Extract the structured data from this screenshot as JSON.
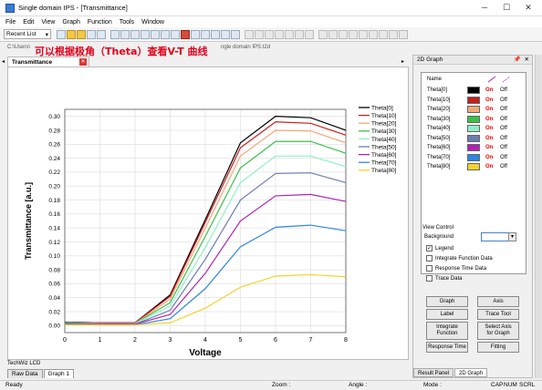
{
  "window": {
    "title": "Single domain IPS - [Transmittance]"
  },
  "menu": [
    "File",
    "Edit",
    "View",
    "Graph",
    "Function",
    "Tools",
    "Window"
  ],
  "toolbar": {
    "recent_list_label": "Recent List"
  },
  "path": {
    "left": "C:\\Users\\",
    "right": "ngle domain IPS.t2d"
  },
  "annotation": "可以根据极角（Theta）查看V-T 曲线",
  "doc_tab": "Transmittance",
  "chart_data": {
    "type": "line",
    "xlabel": "Voltage",
    "ylabel": "Transmittance [a.u.]",
    "xlim": [
      0,
      8
    ],
    "ylim": [
      -0.01,
      0.31
    ],
    "x_ticks": [
      "0",
      "1",
      "2",
      "3",
      "4",
      "5",
      "6",
      "7",
      "8"
    ],
    "y_ticks": [
      "0.00",
      "0.02",
      "0.04",
      "0.06",
      "0.08",
      "0.10",
      "0.12",
      "0.14",
      "0.16",
      "0.18",
      "0.20",
      "0.22",
      "0.24",
      "0.26",
      "0.28",
      "0.30"
    ],
    "grid": true,
    "legend_position": "top-right",
    "x": [
      0,
      1,
      2,
      3,
      4,
      5,
      6,
      7,
      8
    ],
    "series": [
      {
        "name": "Theta[0]",
        "color": "#000000",
        "values": [
          0.005,
          0.004,
          0.004,
          0.044,
          0.152,
          0.262,
          0.3,
          0.298,
          0.28
        ]
      },
      {
        "name": "Theta[10]",
        "color": "#c81e1e",
        "values": [
          0.005,
          0.004,
          0.004,
          0.042,
          0.148,
          0.255,
          0.292,
          0.29,
          0.273
        ]
      },
      {
        "name": "Theta[20]",
        "color": "#f2a878",
        "values": [
          0.004,
          0.003,
          0.003,
          0.038,
          0.14,
          0.243,
          0.28,
          0.279,
          0.262
        ]
      },
      {
        "name": "Theta[30]",
        "color": "#3cbf4a",
        "values": [
          0.004,
          0.003,
          0.003,
          0.033,
          0.128,
          0.226,
          0.264,
          0.264,
          0.247
        ]
      },
      {
        "name": "Theta[40]",
        "color": "#8ff0c8",
        "values": [
          0.003,
          0.003,
          0.003,
          0.028,
          0.112,
          0.205,
          0.243,
          0.243,
          0.228
        ]
      },
      {
        "name": "Theta[50]",
        "color": "#6a7fb0",
        "values": [
          0.003,
          0.002,
          0.002,
          0.022,
          0.095,
          0.18,
          0.218,
          0.219,
          0.205
        ]
      },
      {
        "name": "Theta[60]",
        "color": "#b022b0",
        "values": [
          0.002,
          0.002,
          0.002,
          0.016,
          0.075,
          0.15,
          0.186,
          0.188,
          0.178
        ]
      },
      {
        "name": "Theta[70]",
        "color": "#2f86e0",
        "values": [
          0.002,
          0.001,
          0.001,
          0.01,
          0.053,
          0.113,
          0.141,
          0.144,
          0.136
        ]
      },
      {
        "name": "Theta[80]",
        "color": "#f2d22e",
        "values": [
          0.001,
          0.001,
          0.001,
          0.004,
          0.025,
          0.055,
          0.071,
          0.073,
          0.07
        ]
      }
    ]
  },
  "techwiz_label": "TechWiz LCD",
  "sheet_tabs": [
    "Raw Data",
    "Graph 1"
  ],
  "status": {
    "left": "Ready",
    "zoom": "Zoom :",
    "angle": "Angle :",
    "mode": "Mode :",
    "caps": "CAP",
    "num": "NUM",
    "scrl": "SCRL"
  },
  "panel": {
    "title": "2D Graph",
    "name_header": "Name",
    "on_label": "On",
    "off_label": "Off",
    "view_control": "View Control",
    "background_label": "Background",
    "checkboxes": [
      {
        "label": "Legend",
        "checked": true
      },
      {
        "label": "Integrate Function Data",
        "checked": false
      },
      {
        "label": "Response Time Data",
        "checked": false
      },
      {
        "label": "Trace Data",
        "checked": false
      }
    ],
    "buttons": {
      "graph": "Graph",
      "axis": "Axis",
      "label": "Label",
      "trace_tool": "Trace Tool",
      "integrate_1": "Integrate",
      "integrate_2": "Function",
      "select_axis_1": "Select Axis",
      "select_axis_2": "for Graph",
      "response_time": "Response Time",
      "fitting": "Fitting"
    },
    "tabs": [
      "Result Panel",
      "2D Graph"
    ]
  }
}
